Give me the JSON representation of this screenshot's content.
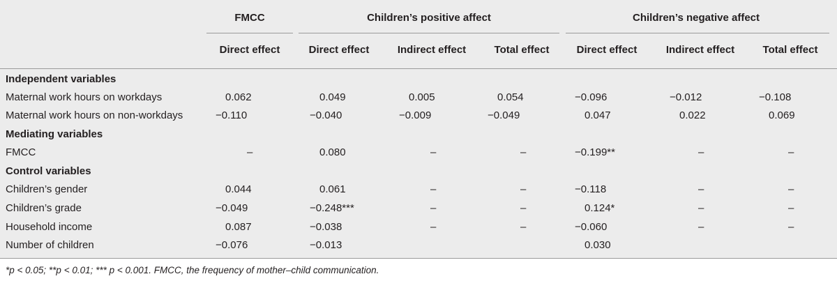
{
  "groups": [
    {
      "id": "fmcc",
      "label": "FMCC"
    },
    {
      "id": "pos",
      "label": "Children’s positive affect"
    },
    {
      "id": "neg",
      "label": "Children’s negative affect"
    }
  ],
  "subheaders": [
    "Direct effect",
    "Direct effect",
    "Indirect effect",
    "Total effect",
    "Direct effect",
    "Indirect effect",
    "Total effect"
  ],
  "sections": [
    {
      "label": "Independent variables"
    },
    {
      "label": "Mediating variables"
    },
    {
      "label": "Control variables"
    }
  ],
  "rows": [
    {
      "label": "Maternal work hours on workdays",
      "cells": [
        "0.062",
        "0.049",
        "0.005",
        "0.054",
        "−0.096",
        "−0.012",
        "−0.108"
      ]
    },
    {
      "label": "Maternal work hours on non-workdays",
      "cells": [
        "−0.110",
        "−0.040",
        "−0.009",
        "−0.049",
        "0.047",
        "0.022",
        "0.069"
      ]
    },
    {
      "label": "FMCC",
      "cells": [
        "–",
        "0.080",
        "–",
        "–",
        "−0.199**",
        "–",
        "–"
      ]
    },
    {
      "label": "Children’s gender",
      "cells": [
        "0.044",
        "0.061",
        "–",
        "–",
        "−0.118",
        "–",
        "–"
      ]
    },
    {
      "label": "Children’s grade",
      "cells": [
        "−0.049",
        "−0.248***",
        "–",
        "–",
        "0.124*",
        "–",
        "–"
      ]
    },
    {
      "label": "Household income",
      "cells": [
        "0.087",
        "−0.038",
        "–",
        "–",
        "−0.060",
        "–",
        "–"
      ]
    },
    {
      "label": "Number of children",
      "cells": [
        "−0.076",
        "−0.013",
        "",
        "",
        "0.030",
        "",
        ""
      ]
    }
  ],
  "footnote": "*p < 0.05; **p < 0.01; *** p < 0.001. FMCC, the frequency of mother–child communication."
}
